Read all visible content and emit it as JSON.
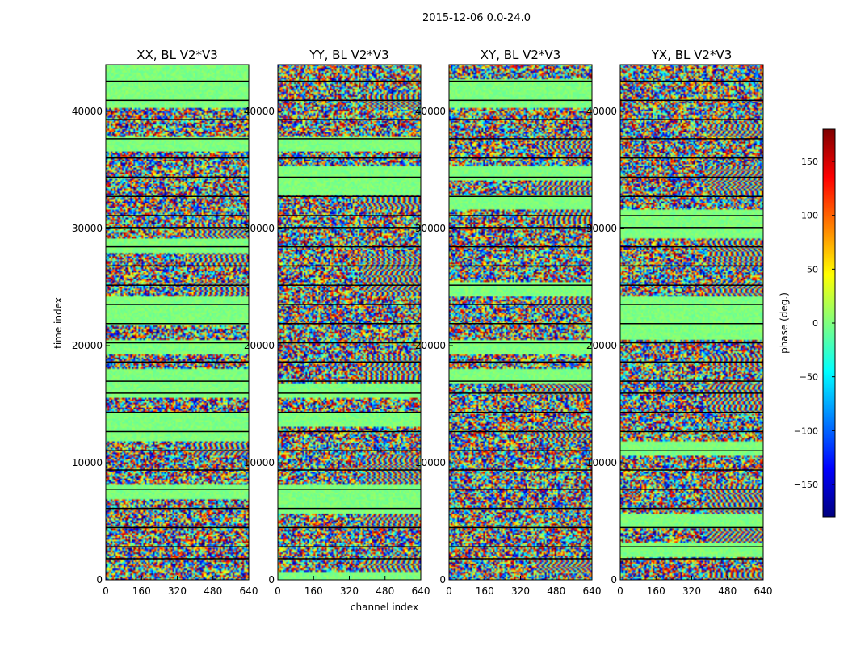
{
  "figure": {
    "suptitle": "2015-12-06 0.0-24.0",
    "xlabel": "channel index",
    "ylabel": "time index"
  },
  "chart_data": {
    "type": "heatmap",
    "title": "2015-12-06 0.0-24.0",
    "xlabel": "channel index",
    "ylabel": "time index",
    "xlim": [
      0,
      640
    ],
    "ylim": [
      0,
      44000
    ],
    "xticks": [
      0,
      160,
      320,
      480,
      640
    ],
    "yticks": [
      0,
      10000,
      20000,
      30000,
      40000
    ],
    "panels": [
      {
        "title": "XX, BL V2*V3",
        "polarization": "XX"
      },
      {
        "title": "YY, BL V2*V3",
        "polarization": "YY"
      },
      {
        "title": "XY, BL V2*V3",
        "polarization": "XY"
      },
      {
        "title": "YX, BL V2*V3",
        "polarization": "YX"
      }
    ],
    "colorbar": {
      "label": "phase (deg.)",
      "range": [
        -180,
        180
      ],
      "ticks": [
        -150,
        -100,
        -50,
        0,
        50,
        100,
        150
      ],
      "colormap": "jet",
      "cmap_colors": [
        "#00007f",
        "#0000ff",
        "#007fff",
        "#00ffff",
        "#7fff7f",
        "#ffff00",
        "#ff7f00",
        "#ff0000",
        "#7f0000"
      ]
    }
  }
}
